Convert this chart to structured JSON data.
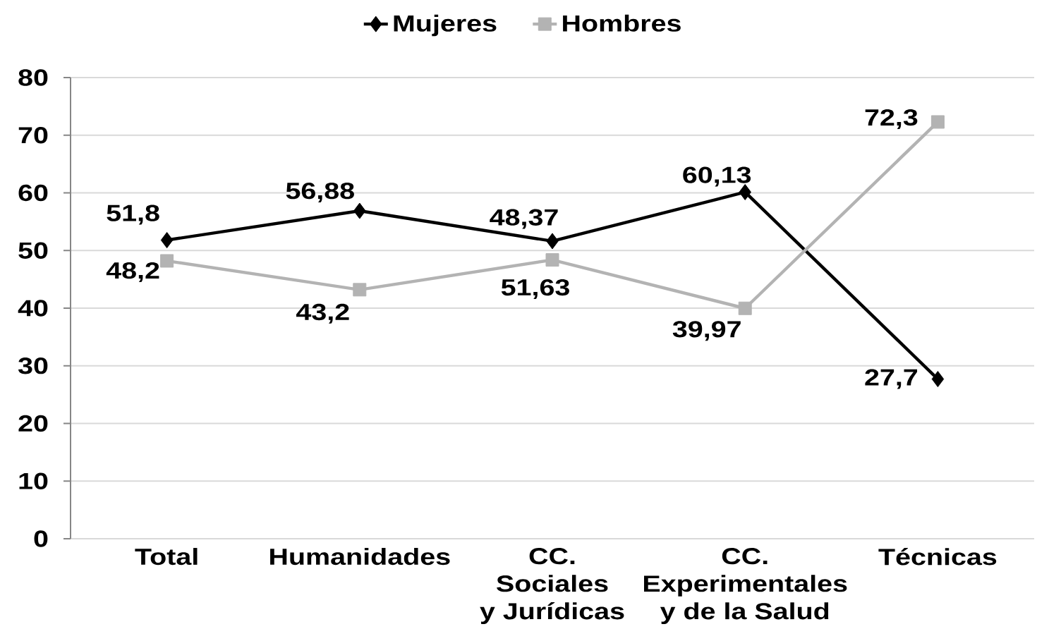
{
  "chart_data": {
    "type": "line",
    "categories": [
      "Total",
      "Humanidades",
      "CC.\nSociales\ny Jurídicas",
      "CC.\nExperimentales\ny de la Salud",
      "Técnicas"
    ],
    "series": [
      {
        "name": "Mujeres",
        "color": "#000000",
        "marker": "diamond",
        "values": [
          51.8,
          56.88,
          51.63,
          60.13,
          27.7
        ],
        "value_labels": [
          "51,8",
          "56,88",
          "51,63",
          "60,13",
          "27,7"
        ]
      },
      {
        "name": "Hombres",
        "color": "#b3b3b3",
        "marker": "square",
        "values": [
          48.2,
          43.2,
          48.37,
          39.97,
          72.3
        ],
        "value_labels": [
          "48,2",
          "43,2",
          "48,37",
          "39,97",
          "72,3"
        ]
      }
    ],
    "ylim": [
      0,
      80
    ],
    "yticks": [
      0,
      10,
      20,
      30,
      40,
      50,
      60,
      70,
      80
    ],
    "grid": "y",
    "legend": "top"
  }
}
